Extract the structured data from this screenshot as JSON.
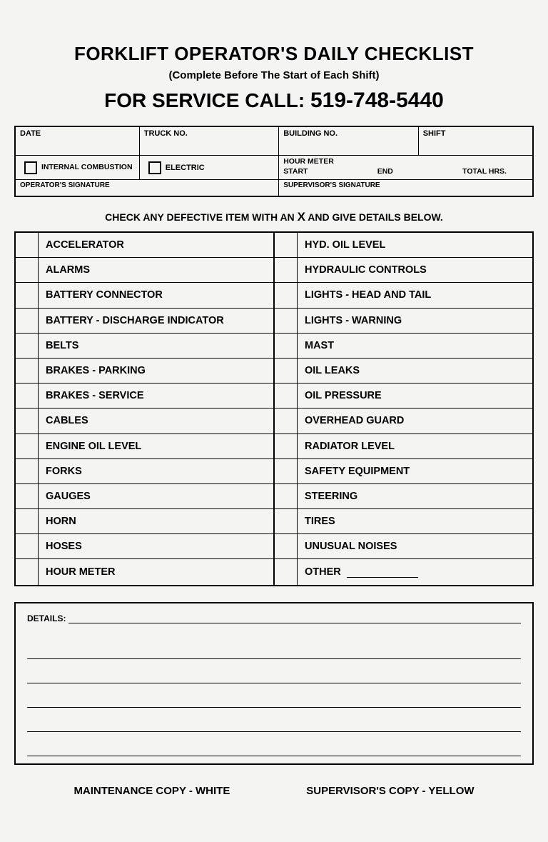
{
  "header": {
    "title": "FORKLIFT OPERATOR'S DAILY CHECKLIST",
    "subtitle": "(Complete Before The Start of Each Shift)",
    "service_prefix": "FOR SERVICE CALL:",
    "phone": "519-748-5440"
  },
  "info": {
    "date_label": "DATE",
    "truck_label": "TRUCK NO.",
    "building_label": "BUILDING NO.",
    "shift_label": "SHIFT",
    "internal_combustion": "INTERNAL COMBUSTION",
    "electric": "ELECTRIC",
    "hour_meter": "HOUR METER",
    "start": "START",
    "end": "END",
    "total_hrs": "TOTAL HRS.",
    "operator_sig": "OPERATOR'S SIGNATURE",
    "supervisor_sig": "SUPERVISOR'S SIGNATURE"
  },
  "instruction": {
    "prefix": "CHECK ANY DEFECTIVE ITEM WITH AN",
    "x": "X",
    "suffix": "AND GIVE DETAILS BELOW."
  },
  "checklist_left": [
    "ACCELERATOR",
    "ALARMS",
    "BATTERY CONNECTOR",
    "BATTERY - DISCHARGE INDICATOR",
    "BELTS",
    "BRAKES - PARKING",
    "BRAKES - SERVICE",
    "CABLES",
    "ENGINE OIL LEVEL",
    "FORKS",
    "GAUGES",
    "HORN",
    "HOSES",
    "HOUR METER"
  ],
  "checklist_right": [
    "HYD. OIL LEVEL",
    "HYDRAULIC CONTROLS",
    "LIGHTS - HEAD AND TAIL",
    "LIGHTS - WARNING",
    "MAST",
    "OIL LEAKS",
    "OIL PRESSURE",
    "OVERHEAD GUARD",
    "RADIATOR LEVEL",
    "SAFETY EQUIPMENT",
    "STEERING",
    "TIRES",
    "UNUSUAL NOISES",
    "OTHER"
  ],
  "details": {
    "label": "DETAILS:",
    "line_count": 5
  },
  "footer": {
    "left": "MAINTENANCE COPY - WHITE",
    "right": "SUPERVISOR'S COPY - YELLOW"
  },
  "styling": {
    "border_color": "#000000",
    "background_color": "#f4f4f2",
    "text_color": "#000000",
    "border_width_outer": 2.5,
    "border_width_inner": 1.3,
    "title_fontsize": 26,
    "service_fontsize": 28,
    "checklist_row_height": 35.2,
    "checklist_fontsize": 14.5
  }
}
